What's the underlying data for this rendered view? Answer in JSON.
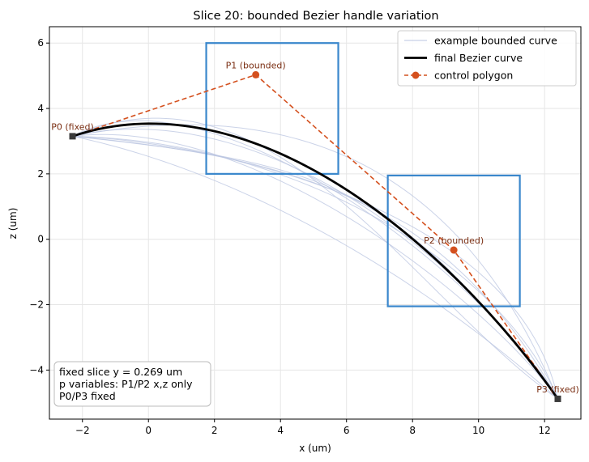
{
  "chart_data": {
    "type": "line",
    "title": "Slice 20: bounded Bezier handle variation",
    "xlabel": "x (um)",
    "ylabel": "z (um)",
    "xlim": [
      -3.0,
      13.1
    ],
    "ylim": [
      -5.5,
      6.5
    ],
    "xticks": [
      -2,
      0,
      2,
      4,
      6,
      8,
      10,
      12
    ],
    "yticks": [
      -4,
      -2,
      0,
      2,
      4,
      6
    ],
    "xtick_labels": [
      "−2",
      "0",
      "2",
      "4",
      "6",
      "8",
      "10",
      "12"
    ],
    "ytick_labels": [
      "−4",
      "−2",
      "0",
      "2",
      "4",
      "6"
    ],
    "grid": true,
    "legend_position": "top-right",
    "legend": [
      {
        "label": "example bounded curve",
        "style": "thin",
        "color": "#b9c4e0"
      },
      {
        "label": "final Bezier curve",
        "style": "thick",
        "color": "#000000"
      },
      {
        "label": "control polygon",
        "style": "dashed-marker",
        "color": "#d4501e"
      }
    ],
    "control_points": [
      {
        "name": "P0",
        "label": "P0 (fixed)",
        "x": -2.3,
        "z": 3.15,
        "marker": "square"
      },
      {
        "name": "P1",
        "label": "P1 (bounded)",
        "x": 3.25,
        "z": 5.03,
        "marker": "circle"
      },
      {
        "name": "P2",
        "label": "P2 (bounded)",
        "x": 9.25,
        "z": -0.33,
        "marker": "circle"
      },
      {
        "name": "P3",
        "label": "P3 (fixed)",
        "x": 12.4,
        "z": -4.88,
        "marker": "square"
      }
    ],
    "bounds": [
      {
        "name": "P1 box",
        "x": [
          1.75,
          5.75
        ],
        "z": [
          2.0,
          6.0
        ],
        "color": "#3a87cc"
      },
      {
        "name": "P2 box",
        "x": [
          7.25,
          11.25
        ],
        "z": [
          -2.05,
          1.95
        ],
        "color": "#3a87cc"
      }
    ],
    "example_curves": [
      {
        "p1": [
          2.0,
          5.5
        ],
        "p2": [
          10.5,
          -1.5
        ]
      },
      {
        "p1": [
          5.5,
          2.3
        ],
        "p2": [
          7.5,
          1.7
        ]
      },
      {
        "p1": [
          2.5,
          4.3
        ],
        "p2": [
          8.5,
          0.8
        ]
      },
      {
        "p1": [
          4.8,
          3.0
        ],
        "p2": [
          10.8,
          -1.0
        ]
      },
      {
        "p1": [
          1.8,
          3.0
        ],
        "p2": [
          11.2,
          1.0
        ]
      },
      {
        "p1": [
          3.8,
          5.8
        ],
        "p2": [
          8.0,
          -1.8
        ]
      },
      {
        "p1": [
          5.2,
          4.6
        ],
        "p2": [
          9.8,
          1.5
        ]
      },
      {
        "p1": [
          2.2,
          2.2
        ],
        "p2": [
          7.5,
          -0.5
        ]
      },
      {
        "p1": [
          3.0,
          3.8
        ],
        "p2": [
          10.0,
          -1.6
        ]
      },
      {
        "p1": [
          4.5,
          2.5
        ],
        "p2": [
          9.0,
          1.2
        ]
      }
    ],
    "annotation": [
      "fixed slice y = 0.269 um",
      "p variables: P1/P2 x,z only",
      "P0/P3 fixed"
    ]
  },
  "colors": {
    "final_curve": "#000000",
    "control_polygon": "#d4501e",
    "bounds": "#3a87cc",
    "example_curve": "#b9c4e0",
    "fixed_marker": "#3a3a3a"
  }
}
